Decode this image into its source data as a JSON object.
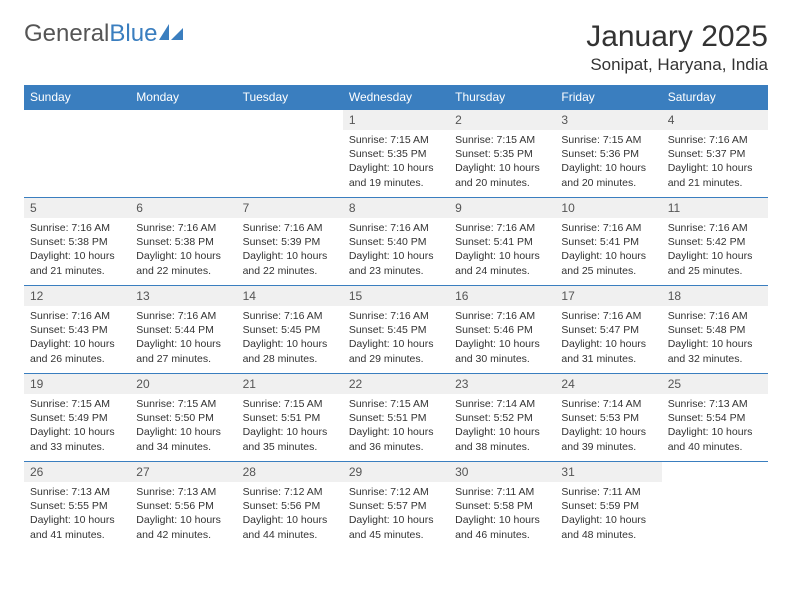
{
  "logo": {
    "text_gray": "General",
    "text_blue": "Blue",
    "icon_color": "#3a7ebf"
  },
  "header": {
    "month_title": "January 2025",
    "location": "Sonipat, Haryana, India"
  },
  "colors": {
    "header_bg": "#3a7ebf",
    "header_text": "#ffffff",
    "daynum_bg": "#f0f0f0",
    "row_border": "#3a7ebf",
    "body_text": "#333333",
    "page_bg": "#ffffff"
  },
  "typography": {
    "month_title_fontsize": 30,
    "location_fontsize": 17,
    "header_cell_fontsize": 12,
    "daynum_fontsize": 12,
    "body_fontsize": 10.5
  },
  "weekdays": [
    "Sunday",
    "Monday",
    "Tuesday",
    "Wednesday",
    "Thursday",
    "Friday",
    "Saturday"
  ],
  "weeks": [
    [
      null,
      null,
      null,
      {
        "n": "1",
        "sr": "7:15 AM",
        "ss": "5:35 PM",
        "dl": "10 hours and 19 minutes."
      },
      {
        "n": "2",
        "sr": "7:15 AM",
        "ss": "5:35 PM",
        "dl": "10 hours and 20 minutes."
      },
      {
        "n": "3",
        "sr": "7:15 AM",
        "ss": "5:36 PM",
        "dl": "10 hours and 20 minutes."
      },
      {
        "n": "4",
        "sr": "7:16 AM",
        "ss": "5:37 PM",
        "dl": "10 hours and 21 minutes."
      }
    ],
    [
      {
        "n": "5",
        "sr": "7:16 AM",
        "ss": "5:38 PM",
        "dl": "10 hours and 21 minutes."
      },
      {
        "n": "6",
        "sr": "7:16 AM",
        "ss": "5:38 PM",
        "dl": "10 hours and 22 minutes."
      },
      {
        "n": "7",
        "sr": "7:16 AM",
        "ss": "5:39 PM",
        "dl": "10 hours and 22 minutes."
      },
      {
        "n": "8",
        "sr": "7:16 AM",
        "ss": "5:40 PM",
        "dl": "10 hours and 23 minutes."
      },
      {
        "n": "9",
        "sr": "7:16 AM",
        "ss": "5:41 PM",
        "dl": "10 hours and 24 minutes."
      },
      {
        "n": "10",
        "sr": "7:16 AM",
        "ss": "5:41 PM",
        "dl": "10 hours and 25 minutes."
      },
      {
        "n": "11",
        "sr": "7:16 AM",
        "ss": "5:42 PM",
        "dl": "10 hours and 25 minutes."
      }
    ],
    [
      {
        "n": "12",
        "sr": "7:16 AM",
        "ss": "5:43 PM",
        "dl": "10 hours and 26 minutes."
      },
      {
        "n": "13",
        "sr": "7:16 AM",
        "ss": "5:44 PM",
        "dl": "10 hours and 27 minutes."
      },
      {
        "n": "14",
        "sr": "7:16 AM",
        "ss": "5:45 PM",
        "dl": "10 hours and 28 minutes."
      },
      {
        "n": "15",
        "sr": "7:16 AM",
        "ss": "5:45 PM",
        "dl": "10 hours and 29 minutes."
      },
      {
        "n": "16",
        "sr": "7:16 AM",
        "ss": "5:46 PM",
        "dl": "10 hours and 30 minutes."
      },
      {
        "n": "17",
        "sr": "7:16 AM",
        "ss": "5:47 PM",
        "dl": "10 hours and 31 minutes."
      },
      {
        "n": "18",
        "sr": "7:16 AM",
        "ss": "5:48 PM",
        "dl": "10 hours and 32 minutes."
      }
    ],
    [
      {
        "n": "19",
        "sr": "7:15 AM",
        "ss": "5:49 PM",
        "dl": "10 hours and 33 minutes."
      },
      {
        "n": "20",
        "sr": "7:15 AM",
        "ss": "5:50 PM",
        "dl": "10 hours and 34 minutes."
      },
      {
        "n": "21",
        "sr": "7:15 AM",
        "ss": "5:51 PM",
        "dl": "10 hours and 35 minutes."
      },
      {
        "n": "22",
        "sr": "7:15 AM",
        "ss": "5:51 PM",
        "dl": "10 hours and 36 minutes."
      },
      {
        "n": "23",
        "sr": "7:14 AM",
        "ss": "5:52 PM",
        "dl": "10 hours and 38 minutes."
      },
      {
        "n": "24",
        "sr": "7:14 AM",
        "ss": "5:53 PM",
        "dl": "10 hours and 39 minutes."
      },
      {
        "n": "25",
        "sr": "7:13 AM",
        "ss": "5:54 PM",
        "dl": "10 hours and 40 minutes."
      }
    ],
    [
      {
        "n": "26",
        "sr": "7:13 AM",
        "ss": "5:55 PM",
        "dl": "10 hours and 41 minutes."
      },
      {
        "n": "27",
        "sr": "7:13 AM",
        "ss": "5:56 PM",
        "dl": "10 hours and 42 minutes."
      },
      {
        "n": "28",
        "sr": "7:12 AM",
        "ss": "5:56 PM",
        "dl": "10 hours and 44 minutes."
      },
      {
        "n": "29",
        "sr": "7:12 AM",
        "ss": "5:57 PM",
        "dl": "10 hours and 45 minutes."
      },
      {
        "n": "30",
        "sr": "7:11 AM",
        "ss": "5:58 PM",
        "dl": "10 hours and 46 minutes."
      },
      {
        "n": "31",
        "sr": "7:11 AM",
        "ss": "5:59 PM",
        "dl": "10 hours and 48 minutes."
      },
      null
    ]
  ],
  "labels": {
    "sunrise": "Sunrise:",
    "sunset": "Sunset:",
    "daylight": "Daylight:"
  }
}
